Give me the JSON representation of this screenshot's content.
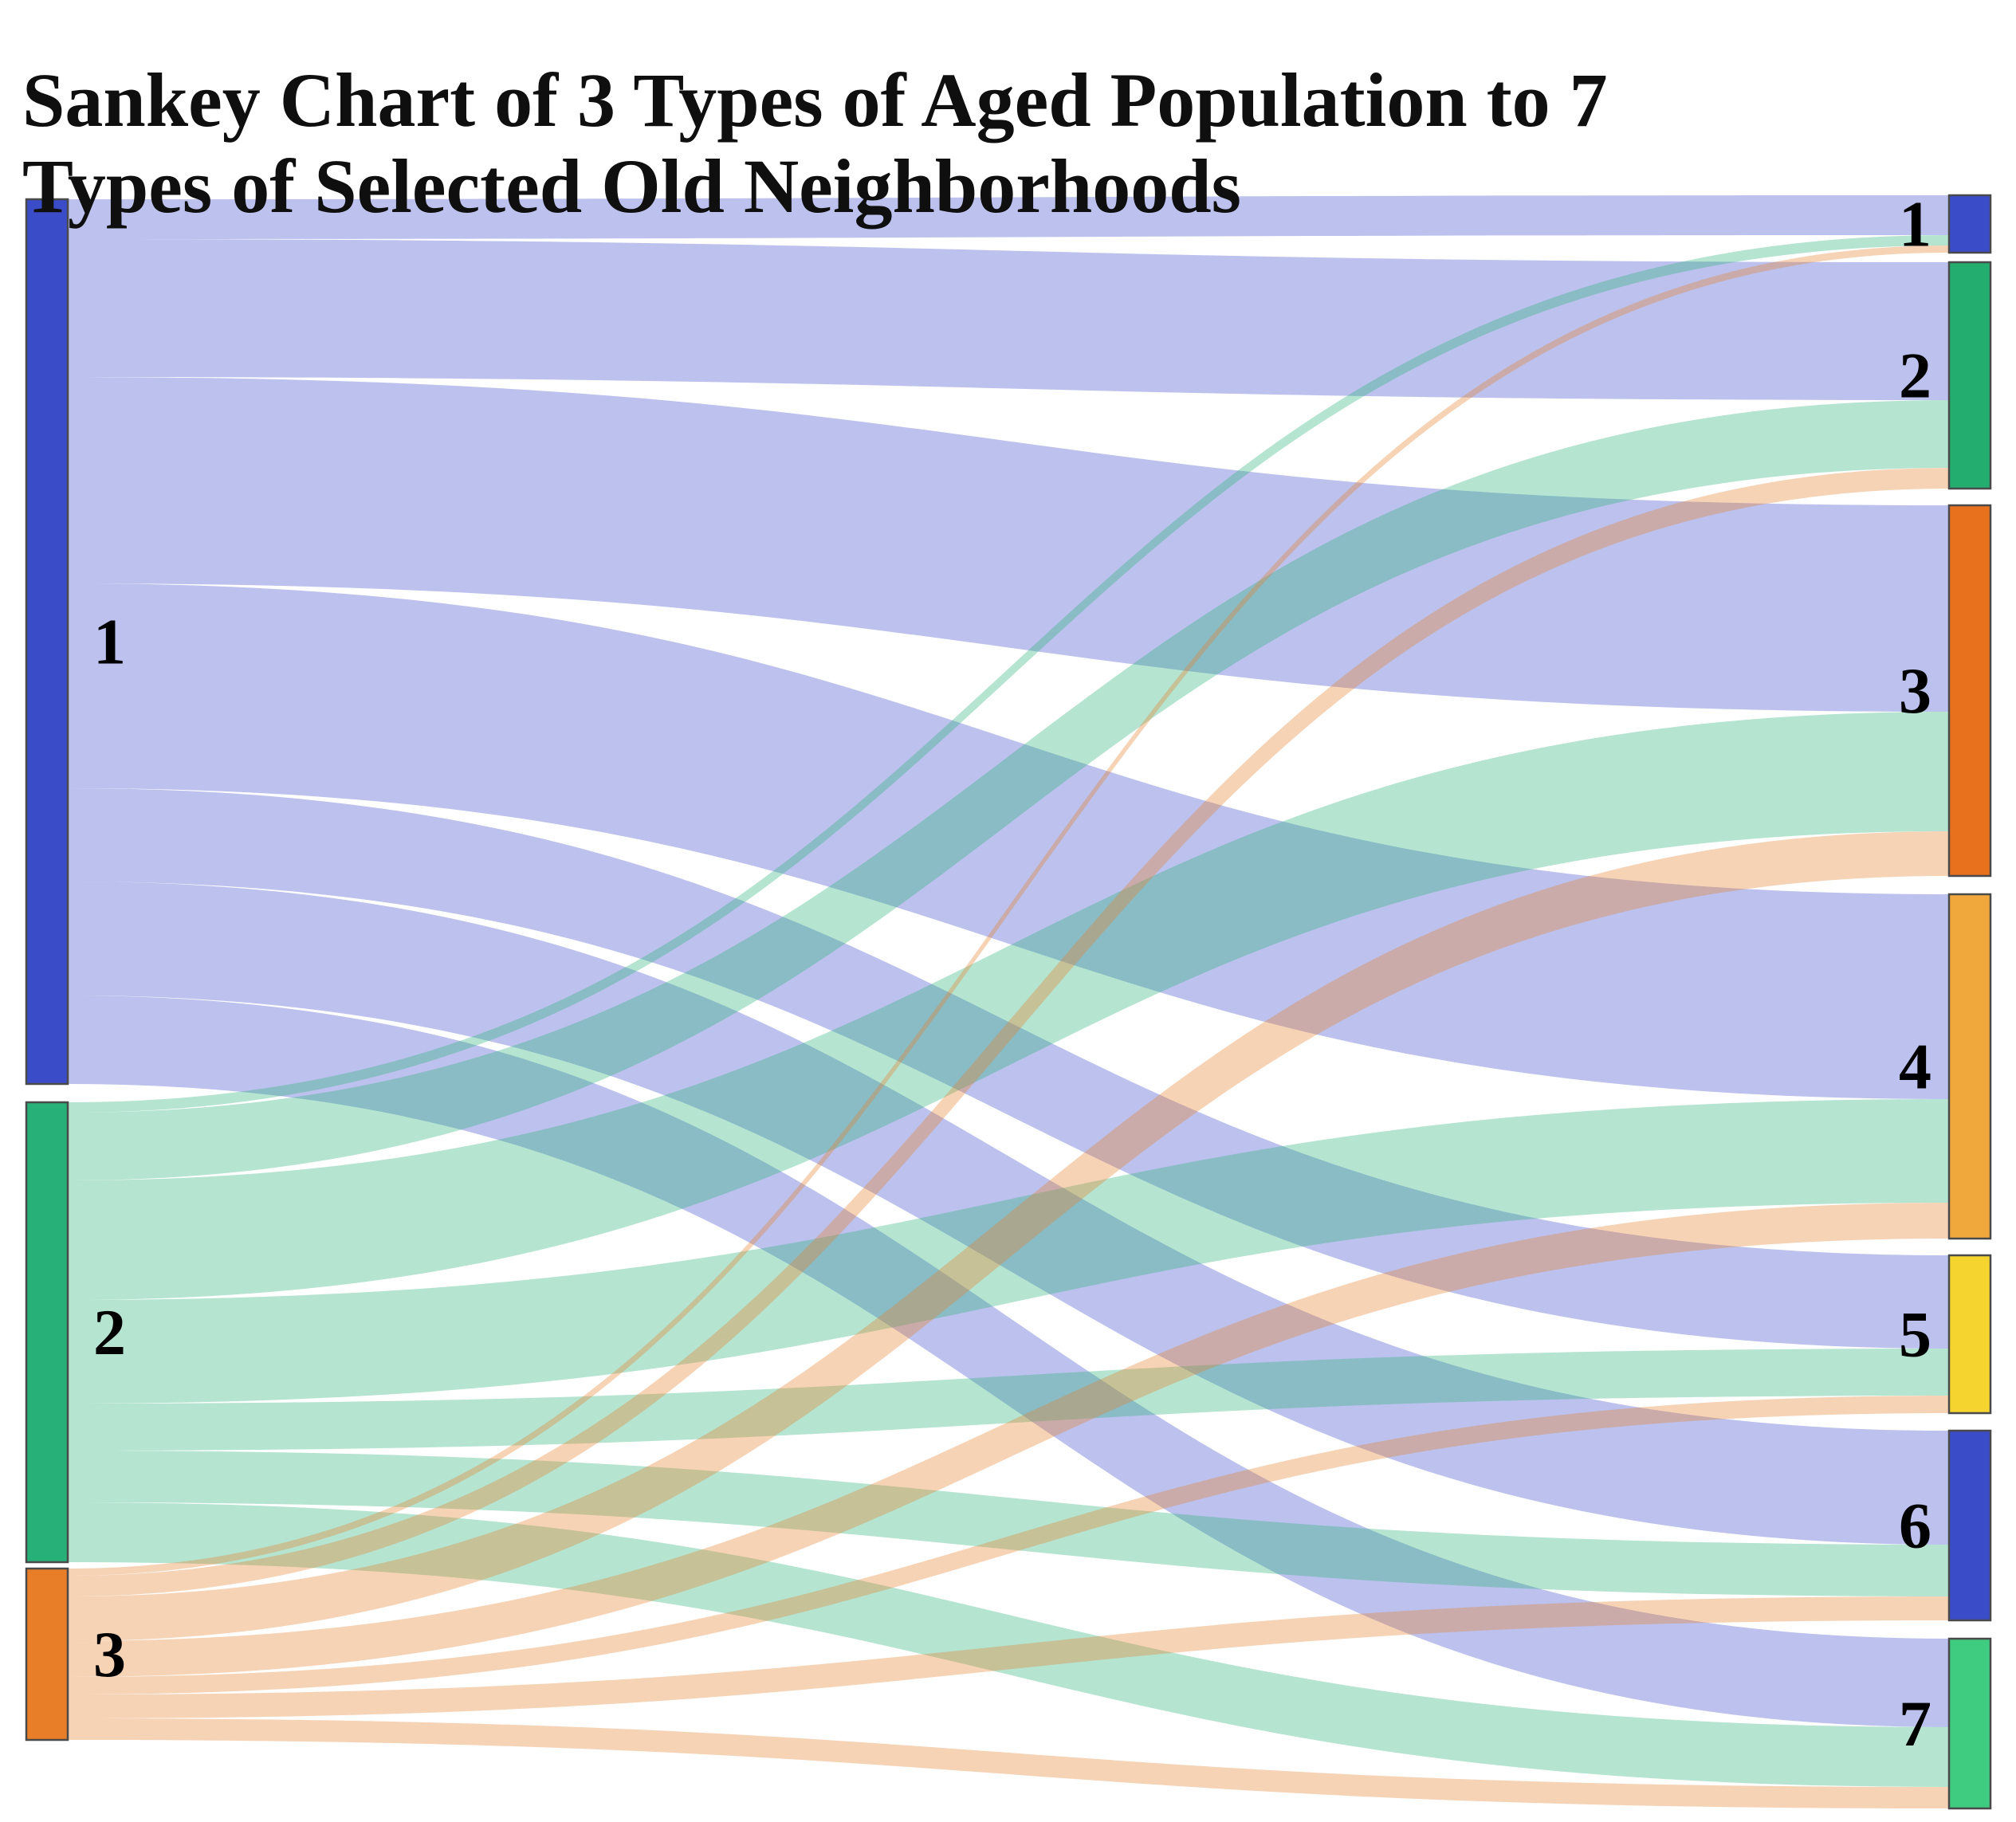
{
  "chart_data": {
    "type": "sankey",
    "title": "Sankey Chart of 3 Types of Aged Population to 7 Types of Selected Old Neighborhoods",
    "title_lines": [
      "Sankey Chart of 3 Types of Aged Population to 7",
      "Types of Selected Old Neighborhoods"
    ],
    "orientation": "left-to-right",
    "legend": "none",
    "value_units": "relative flow width estimated from figure (no numeric labels shown)",
    "flow_color_by": "source",
    "flow_opacity": 0.34,
    "background_color": "#FFFFFF",
    "node_border_color": "#4A4A4A",
    "text_color": "#0F0F0F",
    "source_nodes": [
      {
        "label": "1",
        "color": "#3B4CC9"
      },
      {
        "label": "2",
        "color": "#27B077"
      },
      {
        "label": "3",
        "color": "#E87E28"
      }
    ],
    "target_nodes": [
      {
        "label": "1",
        "color": "#3B4CC9"
      },
      {
        "label": "2",
        "color": "#23AD6F"
      },
      {
        "label": "3",
        "color": "#E8711E"
      },
      {
        "label": "4",
        "color": "#F0A73C"
      },
      {
        "label": "5",
        "color": "#F5D42F"
      },
      {
        "label": "6",
        "color": "#3B4CC9"
      },
      {
        "label": "7",
        "color": "#3FCB80"
      }
    ],
    "links": [
      {
        "source": "1",
        "target": "1",
        "value": 50
      },
      {
        "source": "1",
        "target": "2",
        "value": 173
      },
      {
        "source": "1",
        "target": "3",
        "value": 259
      },
      {
        "source": "1",
        "target": "4",
        "value": 257
      },
      {
        "source": "1",
        "target": "5",
        "value": 117
      },
      {
        "source": "1",
        "target": "6",
        "value": 143
      },
      {
        "source": "1",
        "target": "7",
        "value": 111
      },
      {
        "source": "2",
        "target": "1",
        "value": 13
      },
      {
        "source": "2",
        "target": "2",
        "value": 85
      },
      {
        "source": "2",
        "target": "3",
        "value": 150
      },
      {
        "source": "2",
        "target": "4",
        "value": 130
      },
      {
        "source": "2",
        "target": "5",
        "value": 59
      },
      {
        "source": "2",
        "target": "6",
        "value": 65
      },
      {
        "source": "2",
        "target": "7",
        "value": 75
      },
      {
        "source": "3",
        "target": "1",
        "value": 9
      },
      {
        "source": "3",
        "target": "2",
        "value": 26
      },
      {
        "source": "3",
        "target": "3",
        "value": 56
      },
      {
        "source": "3",
        "target": "4",
        "value": 45
      },
      {
        "source": "3",
        "target": "5",
        "value": 22
      },
      {
        "source": "3",
        "target": "6",
        "value": 30
      },
      {
        "source": "3",
        "target": "7",
        "value": 27
      }
    ]
  }
}
